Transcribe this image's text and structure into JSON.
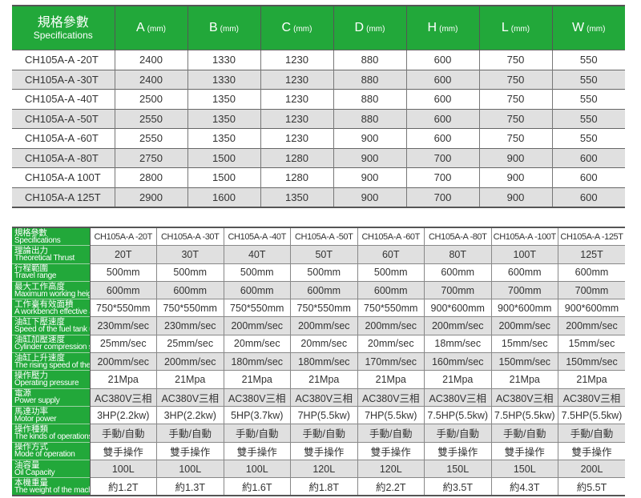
{
  "top_table": {
    "header": {
      "spec_zh": "規格參數",
      "spec_en": "Specifications",
      "unit": "(mm)",
      "columns": [
        "A",
        "B",
        "C",
        "D",
        "H",
        "L",
        "W"
      ]
    },
    "rows": [
      [
        "CH105A-A -20T",
        "2400",
        "1330",
        "1230",
        "880",
        "600",
        "750",
        "550"
      ],
      [
        "CH105A-A -30T",
        "2400",
        "1330",
        "1230",
        "880",
        "600",
        "750",
        "550"
      ],
      [
        "CH105A-A -40T",
        "2500",
        "1350",
        "1230",
        "880",
        "600",
        "750",
        "550"
      ],
      [
        "CH105A-A -50T",
        "2550",
        "1350",
        "1230",
        "880",
        "600",
        "750",
        "550"
      ],
      [
        "CH105A-A -60T",
        "2550",
        "1350",
        "1230",
        "900",
        "600",
        "750",
        "550"
      ],
      [
        "CH105A-A -80T",
        "2750",
        "1500",
        "1280",
        "900",
        "700",
        "900",
        "600"
      ],
      [
        "CH105A-A 100T",
        "2800",
        "1500",
        "1280",
        "900",
        "700",
        "900",
        "600"
      ],
      [
        "CH105A-A 125T",
        "2900",
        "1600",
        "1350",
        "900",
        "700",
        "900",
        "600"
      ]
    ]
  },
  "bottom_table": {
    "rows": [
      {
        "zh": "規格參數",
        "en": "Specifications",
        "values": [
          "CH105A-A -20T",
          "CH105A-A -30T",
          "CH105A-A -40T",
          "CH105A-A -50T",
          "CH105A-A -60T",
          "CH105A-A -80T",
          "CH105A-A -100T",
          "CH105A-A -125T"
        ]
      },
      {
        "zh": "理論出力",
        "en": "Theoretical Thrust",
        "values": [
          "20T",
          "30T",
          "40T",
          "50T",
          "60T",
          "80T",
          "100T",
          "125T"
        ]
      },
      {
        "zh": "行程範圍",
        "en": "Travel range",
        "values": [
          "500mm",
          "500mm",
          "500mm",
          "500mm",
          "500mm",
          "600mm",
          "600mm",
          "600mm"
        ]
      },
      {
        "zh": "最大工作高度",
        "en": "Maximum working height",
        "values": [
          "600mm",
          "600mm",
          "600mm",
          "600mm",
          "600mm",
          "700mm",
          "700mm",
          "700mm"
        ]
      },
      {
        "zh": "工作臺有效面積",
        "en": "A workbench effective area",
        "values": [
          "750*550mm",
          "750*550mm",
          "750*550mm",
          "750*550mm",
          "750*550mm",
          "900*600mm",
          "900*600mm",
          "900*600mm"
        ]
      },
      {
        "zh": "油缸下壓速度",
        "en": "Speed of the fuel tank under pressure",
        "values": [
          "230mm/sec",
          "230mm/sec",
          "200mm/sec",
          "200mm/sec",
          "200mm/sec",
          "200mm/sec",
          "200mm/sec",
          "200mm/sec"
        ]
      },
      {
        "zh": "油缸加壓速度",
        "en": "Cylinder compression speed",
        "values": [
          "25mm/sec",
          "25mm/sec",
          "20mm/sec",
          "20mm/sec",
          "20mm/sec",
          "18mm/sec",
          "15mm/sec",
          "15mm/sec"
        ]
      },
      {
        "zh": "油缸上升速度",
        "en": "The rising speed of the cylinder",
        "values": [
          "200mm/sec",
          "200mm/sec",
          "180mm/sec",
          "180mm/sec",
          "170mm/sec",
          "160mm/sec",
          "150mm/sec",
          "150mm/sec"
        ]
      },
      {
        "zh": "操作壓力",
        "en": "Operating pressure",
        "values": [
          "21Mpa",
          "21Mpa",
          "21Mpa",
          "21Mpa",
          "21Mpa",
          "21Mpa",
          "21Mpa",
          "21Mpa"
        ]
      },
      {
        "zh": "電源",
        "en": "Power supply",
        "values": [
          "AC380V三相",
          "AC380V三相",
          "AC380V三相",
          "AC380V三相",
          "AC380V三相",
          "AC380V三相",
          "AC380V三相",
          "AC380V三相"
        ]
      },
      {
        "zh": "馬達功率",
        "en": "Motor power",
        "values": [
          "3HP(2.2kw)",
          "3HP(2.2kw)",
          "5HP(3.7kw)",
          "7HP(5.5kw)",
          "7HP(5.5kw)",
          "7.5HP(5.5kw)",
          "7.5HP(5.5kw)",
          "7.5HP(5.5kw)"
        ]
      },
      {
        "zh": "操作種類",
        "en": "The kinds of operations",
        "values": [
          "手動/自動",
          "手動/自動",
          "手動/自動",
          "手動/自動",
          "手動/自動",
          "手動/自動",
          "手動/自動",
          "手動/自動"
        ]
      },
      {
        "zh": "操作方式",
        "en": "Mode of operation",
        "values": [
          "雙手操作",
          "雙手操作",
          "雙手操作",
          "雙手操作",
          "雙手操作",
          "雙手操作",
          "雙手操作",
          "雙手操作"
        ]
      },
      {
        "zh": "油容量",
        "en": "Oil Capacity",
        "values": [
          "100L",
          "100L",
          "100L",
          "120L",
          "120L",
          "150L",
          "150L",
          "200L"
        ]
      },
      {
        "zh": "本機重量",
        "en": "The weight of the machine",
        "values": [
          "約1.2T",
          "約1.3T",
          "約1.6T",
          "約1.8T",
          "約2.2T",
          "約3.5T",
          "約4.3T",
          "約5.5T"
        ]
      }
    ]
  },
  "colors": {
    "header_green": "#22a83a",
    "row_gray": "#e0e0e0"
  }
}
